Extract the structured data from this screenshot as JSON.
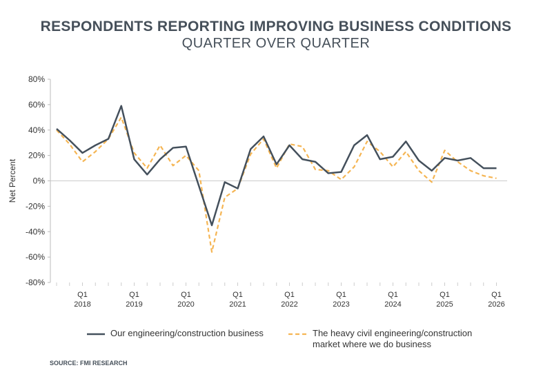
{
  "chart_data": {
    "type": "line",
    "title": "RESPONDENTS REPORTING IMPROVING BUSINESS CONDITIONS",
    "subtitle": "QUARTER OVER QUARTER",
    "ylabel": "Net Percent",
    "ylim": [
      -80,
      80
    ],
    "yticks": [
      "80%",
      "60%",
      "40%",
      "20%",
      "0%",
      "-20%",
      "-40%",
      "-60%",
      "-80%"
    ],
    "ytick_values": [
      80,
      60,
      40,
      20,
      0,
      -20,
      -40,
      -60,
      -80
    ],
    "xtick_labels": [
      {
        "q": "Q1",
        "year": "2018"
      },
      {
        "q": "Q1",
        "year": "2019"
      },
      {
        "q": "Q1",
        "year": "2020"
      },
      {
        "q": "Q1",
        "year": "2021"
      },
      {
        "q": "Q1",
        "year": "2022"
      },
      {
        "q": "Q1",
        "year": "2023"
      },
      {
        "q": "Q1",
        "year": "2024"
      },
      {
        "q": "Q1",
        "year": "2025"
      },
      {
        "q": "Q1",
        "year": "2026"
      }
    ],
    "x": [
      "Q3 2017",
      "Q4 2017",
      "Q1 2018",
      "Q2 2018",
      "Q3 2018",
      "Q4 2018",
      "Q1 2019",
      "Q2 2019",
      "Q3 2019",
      "Q4 2019",
      "Q1 2020",
      "Q2 2020",
      "Q3 2020",
      "Q4 2020",
      "Q1 2021",
      "Q2 2021",
      "Q3 2021",
      "Q4 2021",
      "Q1 2022",
      "Q2 2022",
      "Q3 2022",
      "Q4 2022",
      "Q1 2023",
      "Q2 2023",
      "Q3 2023",
      "Q4 2023",
      "Q1 2024",
      "Q2 2024",
      "Q3 2024",
      "Q4 2024",
      "Q1 2025",
      "Q2 2025",
      "Q3 2025",
      "Q4 2025",
      "Q1 2026"
    ],
    "series": [
      {
        "name": "Our engineering/construction business",
        "color": "#44505c",
        "style": "solid",
        "values": [
          41,
          32,
          22,
          28,
          33,
          59,
          17,
          5,
          17,
          26,
          27,
          -4,
          -35,
          -1,
          -6,
          25,
          35,
          13,
          28,
          17,
          15,
          6,
          7,
          28,
          36,
          17,
          19,
          31,
          16,
          8,
          18,
          16,
          18,
          10,
          10
        ]
      },
      {
        "name": "The heavy civil engineering/construction market where we do business",
        "color": "#f5b553",
        "style": "dashed",
        "values": [
          40,
          29,
          15,
          23,
          33,
          50,
          22,
          10,
          28,
          12,
          20,
          8,
          -56,
          -13,
          -6,
          21,
          33,
          10,
          29,
          27,
          9,
          8,
          1,
          11,
          31,
          23,
          11,
          23,
          8,
          -1,
          24,
          15,
          8,
          4,
          2
        ]
      }
    ],
    "legend": {
      "position": "bottom",
      "line1": "The heavy civil engineering/construction",
      "line2": "market where we do business"
    },
    "grid": false,
    "source": "SOURCE: FMI RESEARCH"
  }
}
